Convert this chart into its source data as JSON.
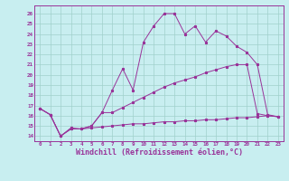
{
  "background_color": "#c8eef0",
  "grid_color": "#a0d0cc",
  "line_color": "#993399",
  "xlabel": "Windchill (Refroidissement éolien,°C)",
  "xlabel_fontsize": 6,
  "xtick_labels": [
    "0",
    "1",
    "2",
    "3",
    "4",
    "5",
    "6",
    "7",
    "8",
    "9",
    "10",
    "11",
    "12",
    "13",
    "14",
    "15",
    "16",
    "17",
    "18",
    "19",
    "20",
    "21",
    "22",
    "23"
  ],
  "ytick_labels": [
    "14",
    "15",
    "16",
    "17",
    "18",
    "19",
    "20",
    "21",
    "22",
    "23",
    "24",
    "25",
    "26"
  ],
  "ylim": [
    13.5,
    26.8
  ],
  "xlim": [
    -0.5,
    23.5
  ],
  "series": [
    [
      16.7,
      16.1,
      14.0,
      14.8,
      14.7,
      15.0,
      16.3,
      18.5,
      20.6,
      18.5,
      23.2,
      24.8,
      26.0,
      26.0,
      24.0,
      24.8,
      23.2,
      24.3,
      23.8,
      22.8,
      22.2,
      21.0,
      16.1,
      15.9
    ],
    [
      16.7,
      16.1,
      14.0,
      14.7,
      14.7,
      15.0,
      16.3,
      16.3,
      16.8,
      17.3,
      17.8,
      18.3,
      18.8,
      19.2,
      19.5,
      19.8,
      20.2,
      20.5,
      20.8,
      21.0,
      21.0,
      16.2,
      16.0,
      15.9
    ],
    [
      16.7,
      16.1,
      14.0,
      14.7,
      14.7,
      14.8,
      14.9,
      15.0,
      15.1,
      15.2,
      15.2,
      15.3,
      15.4,
      15.4,
      15.5,
      15.5,
      15.6,
      15.6,
      15.7,
      15.8,
      15.8,
      15.9,
      16.0,
      15.9
    ]
  ]
}
